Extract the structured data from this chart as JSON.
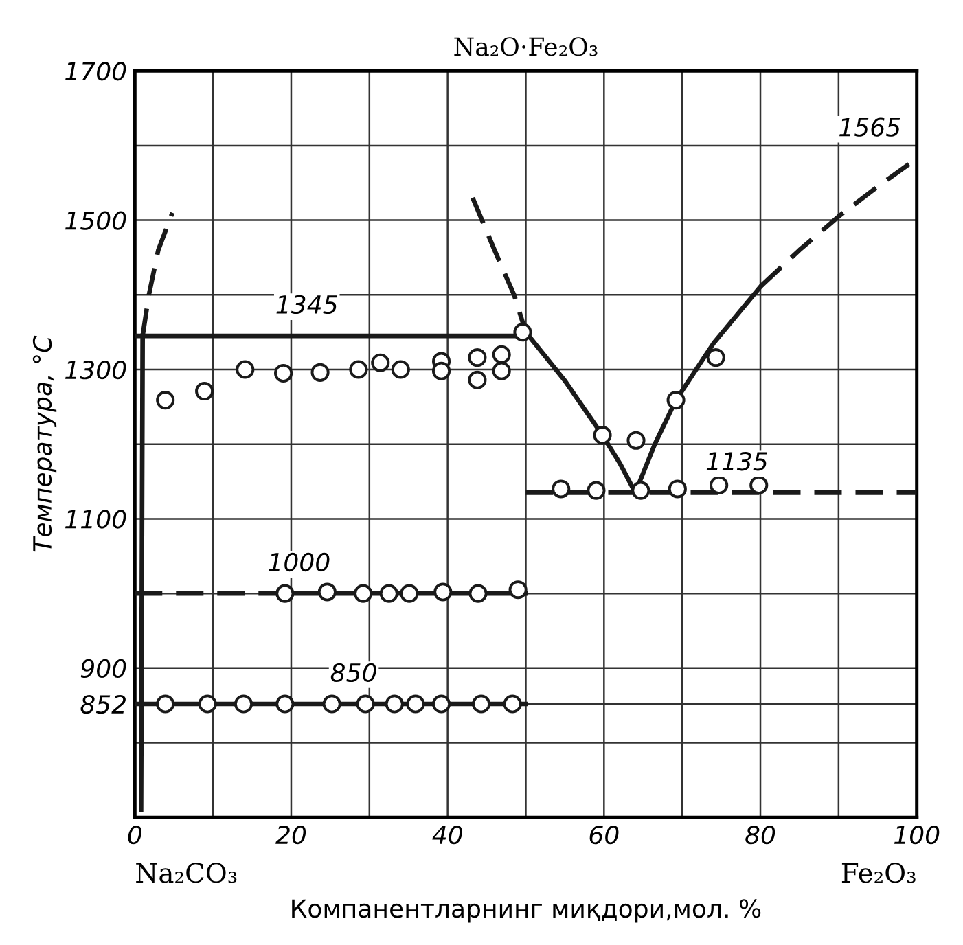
{
  "chart_data": {
    "type": "line",
    "title": "Na₂O·Fe₂O₃",
    "xlabel": "Компанентларнинг миқдори,мол. %",
    "ylabel": "Температура, °C",
    "xlim": [
      0,
      100
    ],
    "ylim": [
      700,
      1700
    ],
    "xticks": [
      0,
      {
        "value": 10,
        "label": null
      },
      20,
      {
        "value": 30,
        "label": null
      },
      40,
      {
        "value": 50,
        "label": null
      },
      60,
      {
        "value": 70,
        "label": null
      },
      80,
      {
        "value": 90,
        "label": null
      },
      100
    ],
    "yticks": [
      {
        "value": 700,
        "label": null
      },
      {
        "value": 800,
        "label": null
      },
      852,
      900,
      {
        "value": 1000,
        "label": null
      },
      1100,
      {
        "value": 1200,
        "label": null
      },
      1300,
      {
        "value": 1400,
        "label": null
      },
      1500,
      {
        "value": 1600,
        "label": null
      },
      1700
    ],
    "grid": true,
    "legend": false,
    "series": [
      {
        "color": "#1a1a1a",
        "line_style": "solid",
        "x": [
          0.8,
          1
        ],
        "values": [
          710,
          1345
        ]
      },
      {
        "color": "#1a1a1a",
        "line_style": "dashed",
        "x": [
          1,
          1.8,
          3,
          4.8
        ],
        "values": [
          1345,
          1400,
          1460,
          1510
        ]
      },
      {
        "color": "#1a1a1a",
        "line_style": "solid",
        "x": [
          0,
          50
        ],
        "values": [
          1345,
          1345
        ]
      },
      {
        "color": "#1a1a1a",
        "line_style": "dashed",
        "x": [
          43.2,
          46,
          48.5,
          50
        ],
        "values": [
          1530,
          1460,
          1400,
          1350
        ]
      },
      {
        "color": "#1a1a1a",
        "line_style": "solid",
        "x": [
          50,
          55,
          59.8,
          62,
          64,
          66.5,
          69.2,
          74,
          80.1
        ],
        "values": [
          1350,
          1285,
          1212,
          1175,
          1135,
          1200,
          1259,
          1335,
          1412
        ]
      },
      {
        "color": "#1a1a1a",
        "line_style": "dashed",
        "x": [
          80.1,
          85,
          90,
          95,
          99
        ],
        "values": [
          1412,
          1460,
          1505,
          1545,
          1575
        ]
      },
      {
        "color": "#1a1a1a",
        "line_style": "dashed",
        "x": [
          50,
          100
        ],
        "values": [
          1135,
          1135
        ]
      },
      {
        "color": "#1a1a1a",
        "line_style": "dashed",
        "x": [
          0,
          19
        ],
        "values": [
          1000,
          1000
        ]
      },
      {
        "color": "#1a1a1a",
        "line_style": "solid",
        "x": [
          19,
          50
        ],
        "values": [
          1000,
          1000
        ]
      },
      {
        "color": "#1a1a1a",
        "line_style": "solid",
        "x": [
          0,
          50
        ],
        "values": [
          852,
          852
        ]
      },
      {
        "type": "scatter",
        "color": "#1a1a1a",
        "marker": "circle",
        "x": [
          3.9,
          8.9,
          14.1,
          19,
          23.7,
          28.6,
          31.4,
          34,
          39.2,
          39.2,
          43.8,
          43.8,
          46.9,
          46.9,
          49.6,
          59.8,
          64.1,
          69.2,
          74.3
        ],
        "values": [
          1259,
          1271,
          1300,
          1295,
          1296,
          1300,
          1309,
          1300,
          1311,
          1298,
          1316,
          1286,
          1320,
          1298,
          1350,
          1212,
          1205,
          1259,
          1316
        ]
      },
      {
        "type": "scatter",
        "color": "#1a1a1a",
        "marker": "circle",
        "x": [
          54.5,
          59,
          64.7,
          69.4,
          74.7,
          79.8
        ],
        "values": [
          1140,
          1138,
          1138,
          1140,
          1145,
          1145
        ]
      },
      {
        "type": "scatter",
        "color": "#1a1a1a",
        "marker": "circle",
        "x": [
          19.2,
          24.6,
          29.2,
          32.5,
          35.1,
          39.4,
          43.9,
          49
        ],
        "values": [
          1000,
          1002,
          1000,
          1000,
          1000,
          1002,
          1000,
          1005
        ]
      },
      {
        "type": "scatter",
        "color": "#1a1a1a",
        "marker": "circle",
        "x": [
          3.9,
          9.3,
          13.9,
          19.2,
          25.2,
          29.5,
          33.2,
          35.9,
          39.2,
          44.3,
          48.3
        ],
        "values": [
          852,
          852,
          852,
          852,
          852,
          852,
          852,
          852,
          852,
          852,
          852
        ]
      }
    ],
    "annotations": [
      {
        "text": "1345",
        "x": 22,
        "y": 1345
      },
      {
        "text": "1565",
        "x": 99,
        "y": 1575
      },
      {
        "text": "1135",
        "x": 77,
        "y": 1135
      },
      {
        "text": "1000",
        "x": 21,
        "y": 1000
      },
      {
        "text": "850",
        "x": 28,
        "y": 852
      },
      "Na₂CO₃",
      "Fe₂O₃"
    ]
  }
}
